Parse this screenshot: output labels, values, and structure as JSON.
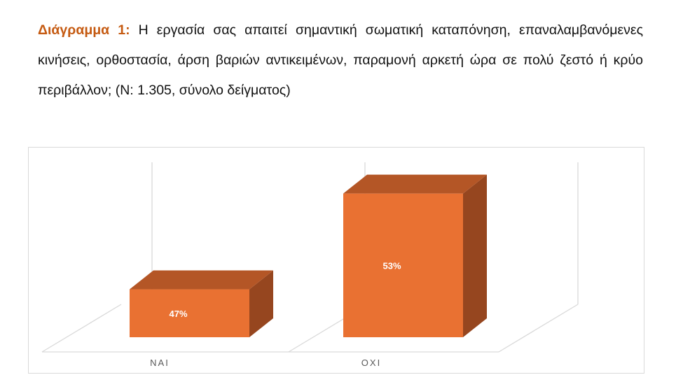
{
  "caption": {
    "label": "Διάγραμμα 1:",
    "text": "Η εργασία σας απαιτεί σημαντική σωματική καταπόνηση, επαναλαμβανόμενες κινήσεις, ορθοστασία, άρση βαριών αντικειμένων, παραμονή αρκετή ώρα σε πολύ ζεστό ή κρύο περιβάλλον; (Ν: 1.305, σύνολο δείγματος)"
  },
  "chart_data": {
    "type": "bar",
    "style": "3d-column",
    "categories": [
      "NAI",
      "OXI"
    ],
    "values": [
      47,
      53
    ],
    "data_labels": [
      "47%",
      "53%"
    ],
    "ylim": [
      44,
      55
    ],
    "y_axis_visible": false,
    "grid": true,
    "legend": "none",
    "colors": {
      "front": "#e97132",
      "top": "#b45626",
      "side": "#96461f",
      "grid": "#d9d9d9",
      "label": "#595959"
    }
  }
}
